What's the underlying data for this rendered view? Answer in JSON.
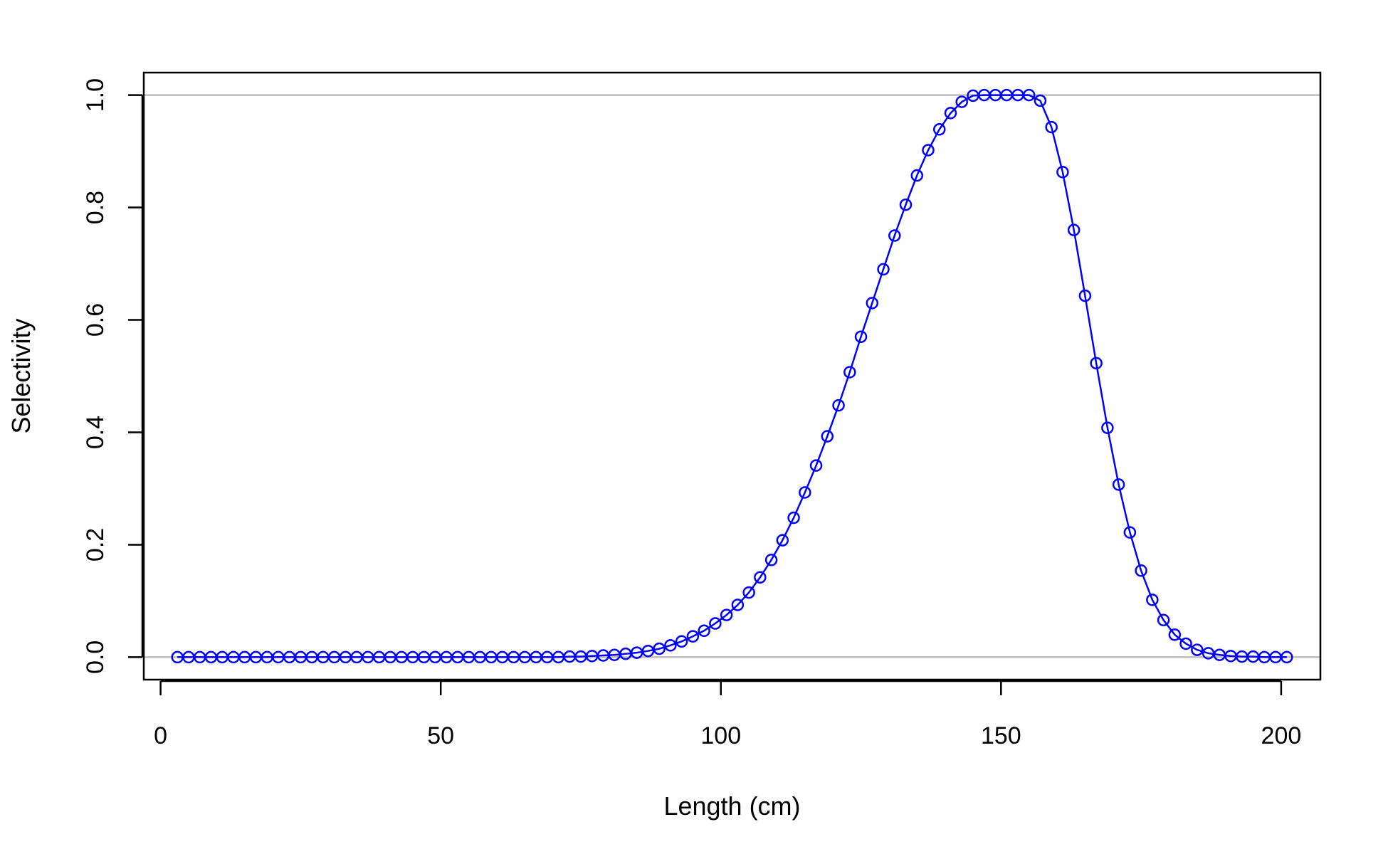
{
  "chart_data": {
    "type": "line",
    "title": "",
    "xlabel": "Length (cm)",
    "ylabel": "Selectivity",
    "xlim": [
      -3,
      207
    ],
    "ylim": [
      -0.04,
      1.04
    ],
    "x_ticks": [
      0,
      50,
      100,
      150,
      200
    ],
    "x_tick_labels": [
      "0",
      "50",
      "100",
      "150",
      "200"
    ],
    "y_ticks": [
      0.0,
      0.2,
      0.4,
      0.6,
      0.8,
      1.0
    ],
    "y_tick_labels": [
      "0.0",
      "0.2",
      "0.4",
      "0.6",
      "0.8",
      "1.0"
    ],
    "reference_lines": [
      0,
      1
    ],
    "grid": false,
    "colors": {
      "series": "#0000ff",
      "reference": "#bebebe",
      "axes": "#000000"
    },
    "series": [
      {
        "marker": "open-circle",
        "line": true,
        "x": [
          3,
          5,
          7,
          9,
          11,
          13,
          15,
          17,
          19,
          21,
          23,
          25,
          27,
          29,
          31,
          33,
          35,
          37,
          39,
          41,
          43,
          45,
          47,
          49,
          51,
          53,
          55,
          57,
          59,
          61,
          63,
          65,
          67,
          69,
          71,
          73,
          75,
          77,
          79,
          81,
          83,
          85,
          87,
          89,
          91,
          93,
          95,
          97,
          99,
          101,
          103,
          105,
          107,
          109,
          111,
          113,
          115,
          117,
          119,
          121,
          123,
          125,
          127,
          129,
          131,
          133,
          135,
          137,
          139,
          141,
          143,
          145,
          147,
          149,
          151,
          153,
          155,
          157,
          159,
          161,
          163,
          165,
          167,
          169,
          171,
          173,
          175,
          177,
          179,
          181,
          183,
          185,
          187,
          189,
          191,
          193,
          195,
          197,
          199,
          201
        ],
        "y": [
          0,
          0,
          0,
          0,
          0,
          0,
          0,
          0,
          0,
          0,
          0,
          0,
          0,
          0,
          0,
          0,
          0,
          0,
          0,
          0,
          0,
          0,
          0,
          0,
          0,
          0,
          0,
          0,
          0,
          0,
          0,
          0,
          0,
          0,
          0,
          0.001,
          0.001,
          0.002,
          0.003,
          0.004,
          0.006,
          0.008,
          0.011,
          0.015,
          0.021,
          0.028,
          0.037,
          0.047,
          0.06,
          0.075,
          0.093,
          0.115,
          0.142,
          0.173,
          0.208,
          0.248,
          0.293,
          0.341,
          0.393,
          0.448,
          0.507,
          0.57,
          0.63,
          0.69,
          0.75,
          0.805,
          0.857,
          0.902,
          0.939,
          0.968,
          0.988,
          0.999,
          1,
          1,
          1,
          1,
          1,
          0.99,
          0.943,
          0.863,
          0.76,
          0.643,
          0.523,
          0.408,
          0.307,
          0.222,
          0.154,
          0.102,
          0.066,
          0.04,
          0.024,
          0.013,
          0.007,
          0.004,
          0.002,
          0.001,
          0.001,
          0,
          0,
          0
        ]
      }
    ]
  }
}
